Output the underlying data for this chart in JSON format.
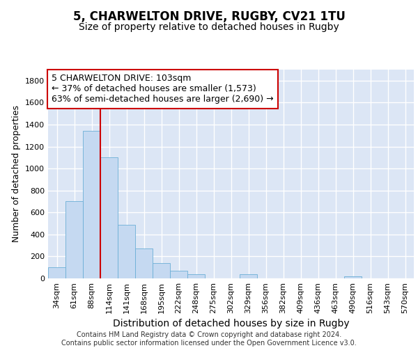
{
  "title1": "5, CHARWELTON DRIVE, RUGBY, CV21 1TU",
  "title2": "Size of property relative to detached houses in Rugby",
  "xlabel": "Distribution of detached houses by size in Rugby",
  "ylabel": "Number of detached properties",
  "bin_labels": [
    "34sqm",
    "61sqm",
    "88sqm",
    "114sqm",
    "141sqm",
    "168sqm",
    "195sqm",
    "222sqm",
    "248sqm",
    "275sqm",
    "302sqm",
    "329sqm",
    "356sqm",
    "382sqm",
    "409sqm",
    "436sqm",
    "463sqm",
    "490sqm",
    "516sqm",
    "543sqm",
    "570sqm"
  ],
  "bar_heights": [
    100,
    700,
    1340,
    1100,
    490,
    270,
    140,
    70,
    35,
    0,
    0,
    35,
    0,
    0,
    0,
    0,
    0,
    20,
    0,
    0,
    0
  ],
  "bar_color": "#c5d9f1",
  "bar_edge_color": "#6baed6",
  "ylim": [
    0,
    1900
  ],
  "yticks": [
    0,
    200,
    400,
    600,
    800,
    1000,
    1200,
    1400,
    1600,
    1800
  ],
  "vline_x_index": 2.48,
  "annotation_text": "5 CHARWELTON DRIVE: 103sqm\n← 37% of detached houses are smaller (1,573)\n63% of semi-detached houses are larger (2,690) →",
  "annotation_box_color": "#ffffff",
  "annotation_box_edgecolor": "#cc0000",
  "vline_color": "#cc0000",
  "footer_text": "Contains HM Land Registry data © Crown copyright and database right 2024.\nContains public sector information licensed under the Open Government Licence v3.0.",
  "background_color": "#dce6f5",
  "grid_color": "#ffffff",
  "title1_fontsize": 12,
  "title2_fontsize": 10,
  "xlabel_fontsize": 10,
  "ylabel_fontsize": 9,
  "tick_fontsize": 8,
  "annotation_fontsize": 9,
  "footer_fontsize": 7
}
